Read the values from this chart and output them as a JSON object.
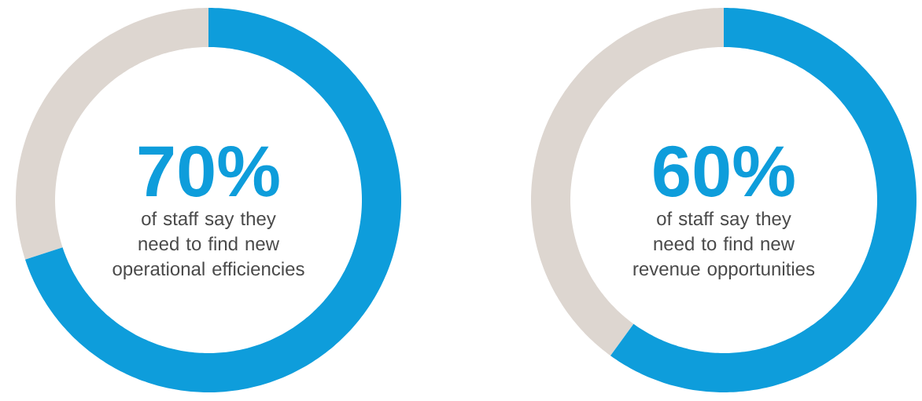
{
  "chart_data": [
    {
      "type": "donut",
      "categories": [
        null,
        null
      ],
      "values": [
        70,
        30
      ],
      "colors": [
        "#0e9ddb",
        "#ddd6d0"
      ],
      "value_labels": [
        "70%",
        null
      ],
      "annotations": [
        "of staff say they need to find new operational efficiencies"
      ]
    },
    {
      "type": "donut",
      "categories": [
        null,
        null
      ],
      "values": [
        60,
        40
      ],
      "colors": [
        "#0e9ddb",
        "#ddd6d0"
      ],
      "value_labels": [
        "60%",
        null
      ],
      "annotations": [
        "of staff say they need to find new revenue opportunities"
      ]
    }
  ]
}
